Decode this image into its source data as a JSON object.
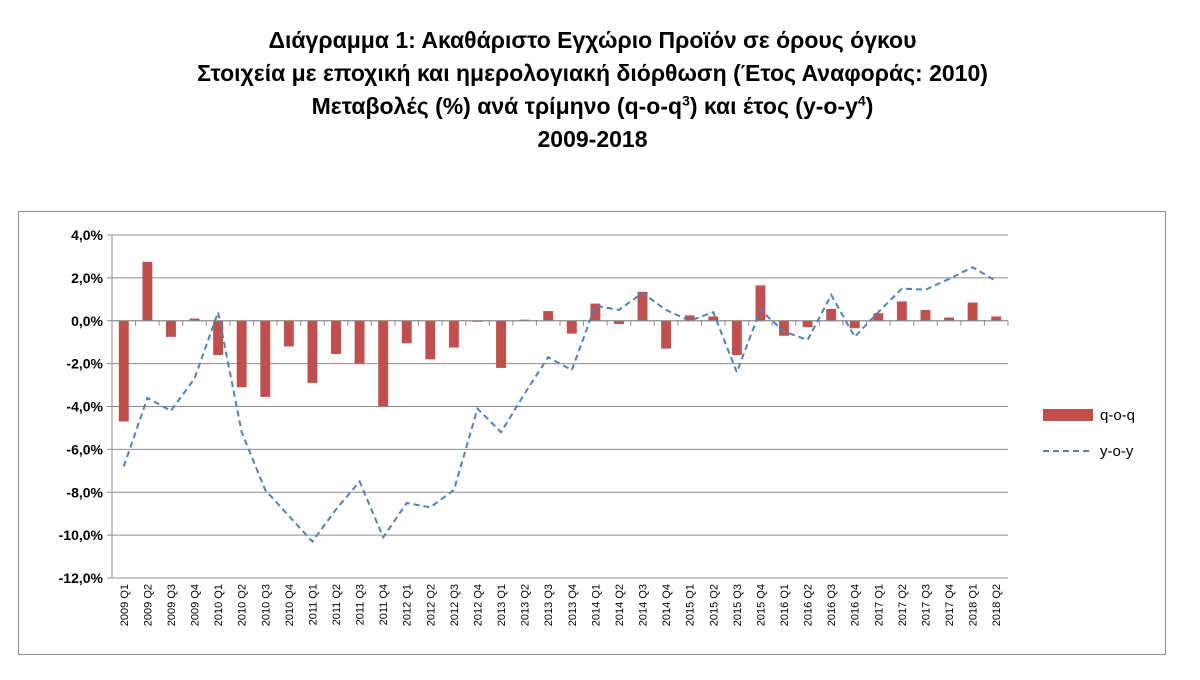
{
  "title": {
    "line1": "Διάγραμμα 1: Ακαθάριστο Εγχώριο Προϊόν σε όρους όγκου",
    "line2": "Στοιχεία με εποχική και ημερολογιακή διόρθωση (Έτος Αναφοράς: 2010)",
    "line3_a": "Μεταβολές (%) ανά τρίμηνο (q-o-q",
    "line3_sup1": "3",
    "line3_b": ") και έτος (y-o-y",
    "line3_sup2": "4",
    "line3_c": ")",
    "line4": "2009-2018"
  },
  "chart_data": {
    "type": "bar",
    "title": "Διάγραμμα 1: Ακαθάριστο Εγχώριο Προϊόν σε όρους όγκου",
    "ylim": [
      -12,
      4
    ],
    "yticks": [
      "4,0%",
      "2,0%",
      "0,0%",
      "-2,0%",
      "-4,0%",
      "-6,0%",
      "-8,0%",
      "-10,0%",
      "-12,0%"
    ],
    "grid": true,
    "legend_position": "right",
    "categories": [
      "2009 Q1",
      "2009 Q2",
      "2009 Q3",
      "2009 Q4",
      "2010 Q1",
      "2010 Q2",
      "2010 Q3",
      "2010 Q4",
      "2011 Q1",
      "2011 Q2",
      "2011 Q3",
      "2011 Q4",
      "2012 Q1",
      "2012 Q2",
      "2012 Q3",
      "2012 Q4",
      "2013 Q1",
      "2013 Q2",
      "2013 Q3",
      "2013 Q4",
      "2014 Q1",
      "2014 Q2",
      "2014 Q3",
      "2014 Q4",
      "2015 Q1",
      "2015 Q2",
      "2015 Q3",
      "2015 Q4",
      "2016 Q1",
      "2016 Q2",
      "2016 Q3",
      "2016 Q4",
      "2017 Q1",
      "2017 Q2",
      "2017 Q3",
      "2017 Q4",
      "2018 Q1",
      "2018 Q2"
    ],
    "series": [
      {
        "name": "q-o-q",
        "kind": "bar",
        "color": "#c0504d",
        "values": [
          -4.7,
          2.75,
          -0.75,
          0.1,
          -1.6,
          -3.1,
          -3.55,
          -1.2,
          -2.9,
          -1.55,
          -2.0,
          -4.0,
          -1.05,
          -1.8,
          -1.25,
          -0.05,
          -2.2,
          0.05,
          0.45,
          -0.6,
          0.8,
          -0.15,
          1.35,
          -1.3,
          0.25,
          0.2,
          -1.6,
          1.65,
          -0.7,
          -0.3,
          0.55,
          -0.35,
          0.35,
          0.9,
          0.5,
          0.15,
          0.85,
          0.2
        ]
      },
      {
        "name": "y-o-y",
        "kind": "line",
        "color": "#4f81bd",
        "values": [
          -6.8,
          -3.6,
          -4.2,
          -2.7,
          0.4,
          -5.2,
          -7.9,
          -9.1,
          -10.3,
          -8.8,
          -7.5,
          -10.1,
          -8.5,
          -8.7,
          -7.9,
          -4.1,
          -5.2,
          -3.4,
          -1.7,
          -2.3,
          0.7,
          0.5,
          1.3,
          0.5,
          0.0,
          0.4,
          -2.4,
          0.5,
          -0.5,
          -0.9,
          1.2,
          -0.75,
          0.4,
          1.5,
          1.45,
          1.95,
          2.5,
          1.85
        ]
      }
    ]
  }
}
